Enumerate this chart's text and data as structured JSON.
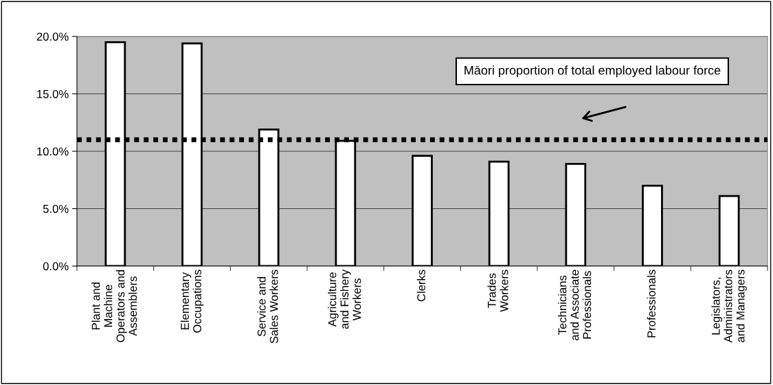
{
  "chart_data": {
    "type": "bar",
    "categories": [
      "Plant and\nMachine\nOperators and\nAssemblers",
      "Elementary\nOccupations",
      "Service and\nSales Workers",
      "Agriculture\nand Fishery\nWorkers",
      "Clerks",
      "Trades\nWorkers",
      "Technicians\nand Associate\nProfessionals",
      "Professionals",
      "Legislators,\nAdministrators\nand Managers"
    ],
    "values": [
      19.5,
      19.4,
      11.9,
      10.9,
      9.6,
      9.1,
      8.9,
      7.0,
      6.1
    ],
    "color": "#ffffff",
    "ylim": [
      0,
      20
    ],
    "yticks": [
      {
        "value": 0,
        "label": "0.0%"
      },
      {
        "value": 5,
        "label": "5.0%"
      },
      {
        "value": 10,
        "label": "10.0%"
      },
      {
        "value": 15,
        "label": "15.0%"
      },
      {
        "value": 20,
        "label": "20.0%"
      }
    ],
    "grid": "y",
    "ref_lines": [
      {
        "axis": "y",
        "value": 11.0,
        "label": "Māori proportion of total employed labour force",
        "color": "#000000",
        "line_style": "dotted"
      }
    ]
  }
}
